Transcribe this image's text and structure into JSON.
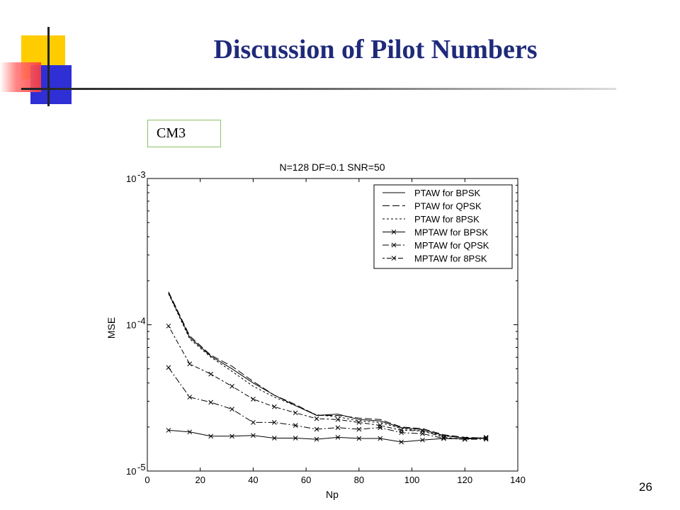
{
  "slide": {
    "title": "Discussion of Pilot Numbers",
    "label_box": "CM3",
    "page_number": "26",
    "colors": {
      "title": "#1f2a7a",
      "deco_yellow": "#ffcc00",
      "deco_blue": "#2f2fd6",
      "deco_red": "#ff3b3b",
      "label_border": "#8fbf66"
    }
  },
  "chart_data": {
    "type": "line",
    "title": "N=128  DF=0.1  SNR=50",
    "xlabel": "Np",
    "ylabel": "MSE",
    "xlim": [
      0,
      140
    ],
    "ylim": [
      1e-05,
      0.001
    ],
    "yscale": "log",
    "grid": false,
    "legend_position": "top-right",
    "x_ticks": [
      "0",
      "20",
      "40",
      "60",
      "80",
      "100",
      "120",
      "140"
    ],
    "y_ticks": [
      {
        "base": "10",
        "exp": "-5",
        "value": 1e-05
      },
      {
        "base": "10",
        "exp": "-4",
        "value": 0.0001
      },
      {
        "base": "10",
        "exp": "-3",
        "value": 0.001
      }
    ],
    "x": [
      8,
      16,
      24,
      32,
      40,
      48,
      56,
      64,
      72,
      80,
      88,
      96,
      104,
      112,
      120,
      128
    ],
    "series": [
      {
        "name": "PTAW for BPSK",
        "style": "solid",
        "marker": "none",
        "values": [
          0.000165,
          8.2e-05,
          6.1e-05,
          5e-05,
          4e-05,
          3.3e-05,
          2.8e-05,
          2.4e-05,
          2.45e-05,
          2.25e-05,
          2.2e-05,
          1.98e-05,
          1.92e-05,
          1.75e-05,
          1.68e-05,
          1.68e-05
        ]
      },
      {
        "name": "PTAW for QPSK",
        "style": "longdash",
        "marker": "none",
        "values": [
          0.000168,
          8.4e-05,
          6.2e-05,
          5.2e-05,
          4.1e-05,
          3.3e-05,
          2.85e-05,
          2.4e-05,
          2.4e-05,
          2.3e-05,
          2.25e-05,
          2e-05,
          1.95e-05,
          1.77e-05,
          1.7e-05,
          1.68e-05
        ]
      },
      {
        "name": "PTAW for 8PSK",
        "style": "dotted",
        "marker": "none",
        "values": [
          0.000163,
          8e-05,
          6e-05,
          4.8e-05,
          3.8e-05,
          3.2e-05,
          2.8e-05,
          2.42e-05,
          2.35e-05,
          2.2e-05,
          2.15e-05,
          1.95e-05,
          1.88e-05,
          1.74e-05,
          1.68e-05,
          1.67e-05
        ]
      },
      {
        "name": "MPTAW for BPSK",
        "style": "solid",
        "marker": "x",
        "values": [
          1.9e-05,
          1.85e-05,
          1.73e-05,
          1.73e-05,
          1.75e-05,
          1.68e-05,
          1.68e-05,
          1.65e-05,
          1.7e-05,
          1.67e-05,
          1.67e-05,
          1.58e-05,
          1.63e-05,
          1.67e-05,
          1.66e-05,
          1.68e-05
        ]
      },
      {
        "name": "MPTAW for QPSK",
        "style": "dashdot",
        "marker": "x",
        "values": [
          5.1e-05,
          3.2e-05,
          2.95e-05,
          2.65e-05,
          2.15e-05,
          2.15e-05,
          2.05e-05,
          1.93e-05,
          1.98e-05,
          1.93e-05,
          1.98e-05,
          1.83e-05,
          1.8e-05,
          1.67e-05,
          1.65e-05,
          1.65e-05
        ]
      },
      {
        "name": "MPTAW for 8PSK",
        "style": "dotdash",
        "marker": "x",
        "values": [
          9.8e-05,
          5.4e-05,
          4.6e-05,
          3.8e-05,
          3.1e-05,
          2.75e-05,
          2.5e-05,
          2.28e-05,
          2.25e-05,
          2.15e-05,
          2.05e-05,
          1.9e-05,
          1.88e-05,
          1.7e-05,
          1.65e-05,
          1.7e-05
        ]
      }
    ]
  }
}
